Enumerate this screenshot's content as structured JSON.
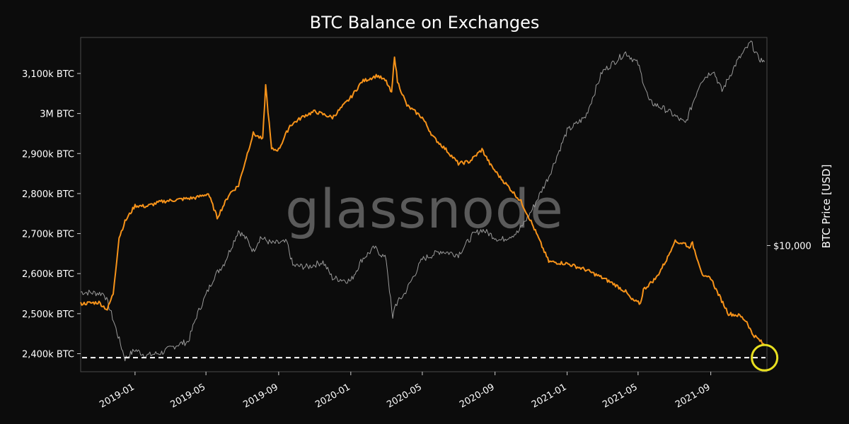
{
  "chart_data": {
    "type": "line",
    "title": "BTC Balance on Exchanges",
    "watermark": "glassnode",
    "y_right_label": "BTC Price [USD]",
    "x_range": [
      "2018-10-01",
      "2021-12-05"
    ],
    "ylim": [
      2355000,
      3190000
    ],
    "y_ticks": [
      {
        "value": 2400000,
        "label": "2,400k BTC"
      },
      {
        "value": 2500000,
        "label": "2,500k BTC"
      },
      {
        "value": 2600000,
        "label": "2,600k BTC"
      },
      {
        "value": 2700000,
        "label": "2,700k BTC"
      },
      {
        "value": 2800000,
        "label": "2,800k BTC"
      },
      {
        "value": 2900000,
        "label": "2,900k BTC"
      },
      {
        "value": 3000000,
        "label": "3M BTC"
      },
      {
        "value": 3100000,
        "label": "3,100k BTC"
      }
    ],
    "y_right_scale": "log",
    "y_right_ylim": [
      3100,
      69000
    ],
    "y_right_ticks": [
      {
        "value": 10000,
        "label": "$10,000"
      }
    ],
    "x_ticks": [
      {
        "value": "2019-01-01",
        "label": "2019-01"
      },
      {
        "value": "2019-05-01",
        "label": "2019-05"
      },
      {
        "value": "2019-09-01",
        "label": "2019-09"
      },
      {
        "value": "2020-01-01",
        "label": "2020-01"
      },
      {
        "value": "2020-05-01",
        "label": "2020-05"
      },
      {
        "value": "2020-09-01",
        "label": "2020-09"
      },
      {
        "value": "2021-01-01",
        "label": "2021-01"
      },
      {
        "value": "2021-05-01",
        "label": "2021-05"
      },
      {
        "value": "2021-09-01",
        "label": "2021-09"
      }
    ],
    "reference_line": {
      "value": 2390000,
      "style": "dashed",
      "color": "#ffffff"
    },
    "highlight_circle": {
      "x": "2021-12-01",
      "y": 2390000,
      "color": "#e8e020"
    },
    "series": [
      {
        "axis": "left",
        "color": "#f7931a",
        "x": [
          "2018-10-01",
          "2018-11-01",
          "2018-11-15",
          "2018-11-25",
          "2018-12-05",
          "2018-12-15",
          "2019-01-01",
          "2019-01-20",
          "2019-02-15",
          "2019-03-15",
          "2019-04-15",
          "2019-05-05",
          "2019-05-20",
          "2019-06-10",
          "2019-06-25",
          "2019-07-10",
          "2019-07-20",
          "2019-08-05",
          "2019-08-10",
          "2019-08-20",
          "2019-09-01",
          "2019-09-20",
          "2019-10-15",
          "2019-11-01",
          "2019-12-01",
          "2020-01-01",
          "2020-01-20",
          "2020-02-15",
          "2020-03-01",
          "2020-03-10",
          "2020-03-15",
          "2020-03-20",
          "2020-04-05",
          "2020-05-01",
          "2020-05-20",
          "2020-06-10",
          "2020-07-01",
          "2020-07-20",
          "2020-08-10",
          "2020-08-25",
          "2020-09-10",
          "2020-09-25",
          "2020-10-15",
          "2020-11-01",
          "2020-11-10",
          "2020-12-01",
          "2021-01-01",
          "2021-02-01",
          "2021-03-01",
          "2021-03-20",
          "2021-04-10",
          "2021-04-20",
          "2021-05-05",
          "2021-05-10",
          "2021-06-01",
          "2021-06-20",
          "2021-07-01",
          "2021-07-20",
          "2021-07-25",
          "2021-08-01",
          "2021-08-20",
          "2021-09-01",
          "2021-09-10",
          "2021-10-01",
          "2021-10-20",
          "2021-11-01",
          "2021-11-10",
          "2021-11-25",
          "2021-12-01"
        ],
        "y": [
          2525000,
          2528000,
          2510000,
          2550000,
          2690000,
          2730000,
          2770000,
          2768000,
          2780000,
          2785000,
          2790000,
          2800000,
          2740000,
          2800000,
          2820000,
          2900000,
          2950000,
          2935000,
          3070000,
          2910000,
          2910000,
          2970000,
          2995000,
          3005000,
          2990000,
          3040000,
          3080000,
          3095000,
          3080000,
          3050000,
          3145000,
          3080000,
          3020000,
          2990000,
          2940000,
          2910000,
          2875000,
          2880000,
          2910000,
          2870000,
          2840000,
          2815000,
          2780000,
          2730000,
          2700000,
          2630000,
          2625000,
          2610000,
          2590000,
          2575000,
          2555000,
          2535000,
          2525000,
          2560000,
          2590000,
          2640000,
          2680000,
          2675000,
          2665000,
          2675000,
          2590000,
          2590000,
          2560000,
          2500000,
          2495000,
          2480000,
          2450000,
          2430000,
          2420000
        ]
      },
      {
        "axis": "right",
        "color": "#9a9a9a",
        "x": [
          "2018-10-01",
          "2018-11-10",
          "2018-11-20",
          "2018-12-15",
          "2019-01-01",
          "2019-01-20",
          "2019-02-15",
          "2019-03-15",
          "2019-04-01",
          "2019-04-15",
          "2019-05-15",
          "2019-06-01",
          "2019-06-25",
          "2019-07-10",
          "2019-07-20",
          "2019-08-01",
          "2019-08-20",
          "2019-09-15",
          "2019-09-25",
          "2019-10-20",
          "2019-11-15",
          "2019-12-01",
          "2020-01-01",
          "2020-01-20",
          "2020-02-10",
          "2020-03-01",
          "2020-03-12",
          "2020-03-15",
          "2020-04-01",
          "2020-05-01",
          "2020-06-01",
          "2020-07-01",
          "2020-07-25",
          "2020-08-10",
          "2020-09-10",
          "2020-10-10",
          "2020-11-01",
          "2020-12-01",
          "2021-01-01",
          "2021-02-01",
          "2021-03-01",
          "2021-04-10",
          "2021-05-01",
          "2021-05-20",
          "2021-06-20",
          "2021-07-20",
          "2021-08-15",
          "2021-09-05",
          "2021-09-20",
          "2021-10-15",
          "2021-11-08",
          "2021-11-20",
          "2021-12-01"
        ],
        "y": [
          6500,
          6400,
          5500,
          3500,
          3800,
          3600,
          3700,
          4000,
          4100,
          5200,
          7500,
          8500,
          11500,
          10500,
          9500,
          10800,
          10200,
          10300,
          8300,
          8200,
          8600,
          7400,
          7200,
          8800,
          9800,
          8800,
          5000,
          5700,
          6400,
          8800,
          9500,
          9200,
          11000,
          11600,
          10500,
          11300,
          13700,
          19000,
          29000,
          33000,
          50000,
          60000,
          54000,
          38000,
          35000,
          31000,
          46000,
          51000,
          42000,
          55000,
          66000,
          57000,
          55000
        ]
      }
    ]
  }
}
